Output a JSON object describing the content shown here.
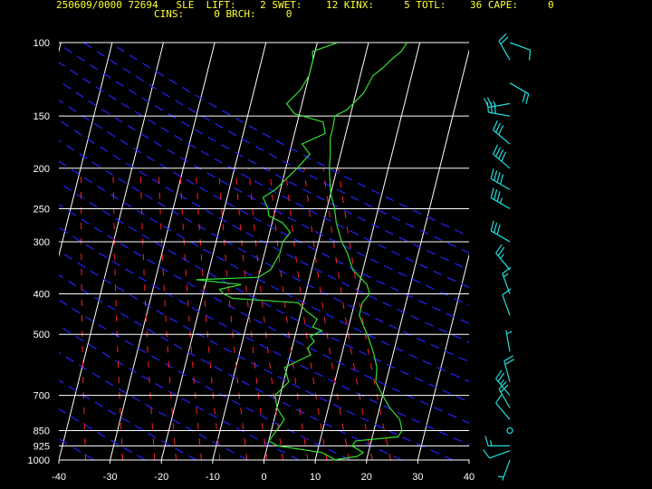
{
  "header": {
    "line1": "250609/0000 72694   SLE  LIFT:    2 SWET:    12 KINX:     5 TOTL:    36 CAPE:     0",
    "line2": "CINS:     0 BRCH:     0"
  },
  "colors": {
    "background": "#000000",
    "isotherm": "#ffffff",
    "isobar": "#ffffff",
    "dry_adiabat": "#2222ff",
    "mixing_ratio": "#ff2222",
    "temperature_trace": "#33dd33",
    "wind_barb": "#22dddd",
    "header_text": "#ffff33"
  },
  "chart_data": {
    "type": "line",
    "subtype": "skew-t log-p sounding",
    "x_axis": {
      "quantity": "temperature",
      "range": [
        -40,
        40
      ],
      "ticks": [
        -40,
        -30,
        -20,
        -10,
        0,
        10,
        20,
        30,
        40
      ]
    },
    "y_axis": {
      "quantity": "pressure",
      "scale": "log",
      "range": [
        1000,
        100
      ],
      "ticks": [
        100,
        150,
        200,
        250,
        300,
        400,
        500,
        700,
        850,
        925,
        1000
      ]
    },
    "series": [
      {
        "role": "temperature",
        "points": [
          [
            1000,
            13.5
          ],
          [
            980,
            18
          ],
          [
            960,
            19
          ],
          [
            925,
            16.5
          ],
          [
            900,
            17
          ],
          [
            880,
            25
          ],
          [
            850,
            25.5
          ],
          [
            800,
            24.5
          ],
          [
            750,
            22
          ],
          [
            700,
            20
          ],
          [
            650,
            18
          ],
          [
            600,
            17.5
          ],
          [
            550,
            16
          ],
          [
            500,
            14
          ],
          [
            480,
            13
          ],
          [
            450,
            11.5
          ],
          [
            420,
            11.5
          ],
          [
            400,
            12.5
          ],
          [
            380,
            11.5
          ],
          [
            350,
            8
          ],
          [
            320,
            6.2
          ],
          [
            300,
            4.5
          ],
          [
            285,
            3.5
          ],
          [
            270,
            2.5
          ],
          [
            250,
            1.5
          ],
          [
            230,
            0
          ],
          [
            210,
            -1
          ],
          [
            200,
            -1.5
          ],
          [
            185,
            -2
          ],
          [
            170,
            -2.8
          ],
          [
            160,
            -2.8
          ],
          [
            150,
            -3
          ],
          [
            145,
            -1
          ],
          [
            140,
            0
          ],
          [
            132,
            1.5
          ],
          [
            120,
            2.5
          ],
          [
            115,
            4
          ],
          [
            110,
            5.2
          ],
          [
            105,
            6.8
          ],
          [
            100,
            7.5
          ]
        ]
      },
      {
        "role": "dewpoint",
        "points": [
          [
            1000,
            14
          ],
          [
            960,
            11
          ],
          [
            925,
            2
          ],
          [
            900,
            0
          ],
          [
            850,
            1
          ],
          [
            800,
            2
          ],
          [
            750,
            0
          ],
          [
            700,
            -1
          ],
          [
            650,
            1
          ],
          [
            600,
            -0.5
          ],
          [
            560,
            4
          ],
          [
            540,
            3
          ],
          [
            520,
            4
          ],
          [
            505,
            3
          ],
          [
            490,
            5
          ],
          [
            480,
            3
          ],
          [
            460,
            3.5
          ],
          [
            440,
            1
          ],
          [
            420,
            -1
          ],
          [
            410,
            -14
          ],
          [
            400,
            -16
          ],
          [
            390,
            -17
          ],
          [
            380,
            -13
          ],
          [
            370,
            -22
          ],
          [
            365,
            -10
          ],
          [
            350,
            -8
          ],
          [
            320,
            -7
          ],
          [
            300,
            -7
          ],
          [
            285,
            -6
          ],
          [
            270,
            -8
          ],
          [
            260,
            -11
          ],
          [
            250,
            -11.5
          ],
          [
            235,
            -13
          ],
          [
            225,
            -11
          ],
          [
            200,
            -7.8
          ],
          [
            185,
            -6
          ],
          [
            175,
            -8
          ],
          [
            165,
            -4
          ],
          [
            155,
            -5
          ],
          [
            148,
            -11
          ],
          [
            140,
            -13
          ],
          [
            130,
            -11
          ],
          [
            120,
            -10
          ],
          [
            110,
            -10
          ],
          [
            105,
            -10.5
          ],
          [
            100,
            -6
          ]
        ]
      }
    ],
    "wind_profile": [
      {
        "p": 1000,
        "dir": 200,
        "spd": 5
      },
      {
        "p": 950,
        "dir": 250,
        "spd": 10
      },
      {
        "p": 925,
        "dir": 270,
        "spd": 15
      },
      {
        "p": 850,
        "dir": 0,
        "spd": 0
      },
      {
        "p": 800,
        "dir": 320,
        "spd": 10
      },
      {
        "p": 750,
        "dir": 330,
        "spd": 20
      },
      {
        "p": 700,
        "dir": 320,
        "spd": 25
      },
      {
        "p": 650,
        "dir": 345,
        "spd": 20
      },
      {
        "p": 550,
        "dir": 350,
        "spd": 5
      },
      {
        "p": 450,
        "dir": 340,
        "spd": 10
      },
      {
        "p": 400,
        "dir": 340,
        "spd": 15
      },
      {
        "p": 350,
        "dir": 320,
        "spd": 25
      },
      {
        "p": 300,
        "dir": 300,
        "spd": 30
      },
      {
        "p": 250,
        "dir": 300,
        "spd": 35
      },
      {
        "p": 225,
        "dir": 300,
        "spd": 40
      },
      {
        "p": 200,
        "dir": 310,
        "spd": 40
      },
      {
        "p": 175,
        "dir": 310,
        "spd": 30
      },
      {
        "p": 150,
        "dir": 280,
        "spd": 30
      },
      {
        "p": 140,
        "dir": 260,
        "spd": 25
      },
      {
        "p": 125,
        "dir": 120,
        "spd": 20
      },
      {
        "p": 110,
        "dir": 330,
        "spd": 20
      },
      {
        "p": 100,
        "dir": 110,
        "spd": 10
      }
    ],
    "dry_adiabats_K": [
      240,
      250,
      260,
      270,
      280,
      290,
      300,
      310,
      320,
      330,
      340,
      350,
      360,
      370,
      380,
      390,
      400,
      410,
      420,
      430
    ],
    "mixing_ratio_lines": [
      0.1,
      0.2,
      0.4,
      0.7,
      1,
      1.5,
      2,
      3,
      4,
      5,
      7,
      9,
      12,
      16,
      20
    ],
    "grid": true,
    "legend": "none"
  }
}
